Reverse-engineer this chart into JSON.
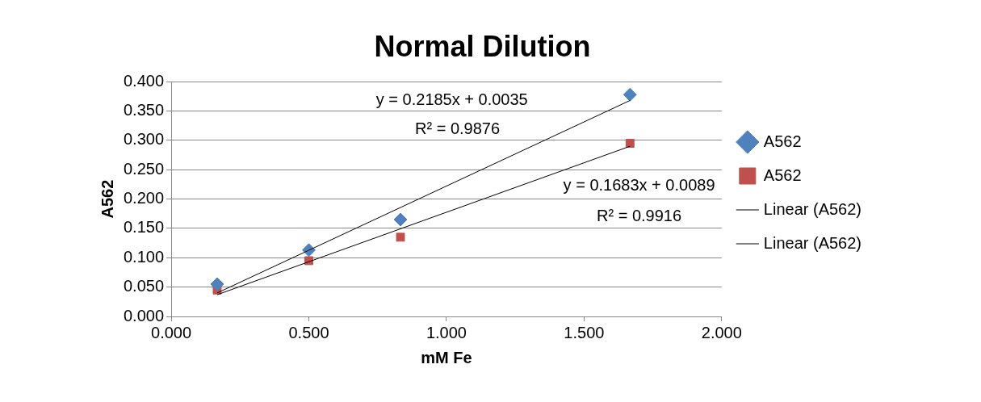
{
  "chart_data": {
    "type": "scatter",
    "title": "Normal Dilution",
    "xlabel": "mM Fe",
    "ylabel": "A562",
    "xlim": [
      0,
      2
    ],
    "xticks": [
      {
        "value": 0,
        "label": "0.000"
      },
      {
        "value": 0.5,
        "label": "0.500"
      },
      {
        "value": 1,
        "label": "1.000"
      },
      {
        "value": 1.5,
        "label": "1.500"
      },
      {
        "value": 2,
        "label": "2.000"
      }
    ],
    "ylim": [
      0,
      0.4
    ],
    "yticks": [
      {
        "value": 0,
        "label": "0.000"
      },
      {
        "value": 0.05,
        "label": "0.050"
      },
      {
        "value": 0.1,
        "label": "0.100"
      },
      {
        "value": 0.15,
        "label": "0.150"
      },
      {
        "value": 0.2,
        "label": "0.200"
      },
      {
        "value": 0.25,
        "label": "0.250"
      },
      {
        "value": 0.3,
        "label": "0.300"
      },
      {
        "value": 0.35,
        "label": "0.350"
      },
      {
        "value": 0.4,
        "label": "0.400"
      }
    ],
    "grid": "y",
    "legend": "right",
    "series": [
      {
        "name": "A562",
        "type": "scatter",
        "marker": "diamond",
        "color": "#4f81bd",
        "x": [
          0.167,
          0.5,
          0.833,
          1.667
        ],
        "values": [
          0.055,
          0.113,
          0.165,
          0.378
        ]
      },
      {
        "name": "A562",
        "type": "scatter",
        "marker": "square",
        "color": "#c0504d",
        "x": [
          0.167,
          0.5,
          0.833,
          1.667
        ],
        "values": [
          0.045,
          0.095,
          0.135,
          0.295
        ]
      },
      {
        "name": "Linear (A562)",
        "type": "line",
        "marker": "none",
        "color": "#000000",
        "x": [
          0.167,
          1.667
        ],
        "values": [
          0.04,
          0.368
        ]
      },
      {
        "name": "Linear (A562)",
        "type": "line",
        "marker": "none",
        "color": "#000000",
        "x": [
          0.167,
          1.667
        ],
        "values": [
          0.037,
          0.29
        ]
      }
    ],
    "annotations": [
      "y = 0.2185x + 0.0035",
      "R² = 0.9876",
      "y = 0.1683x + 0.0089",
      "R² = 0.9916"
    ]
  }
}
